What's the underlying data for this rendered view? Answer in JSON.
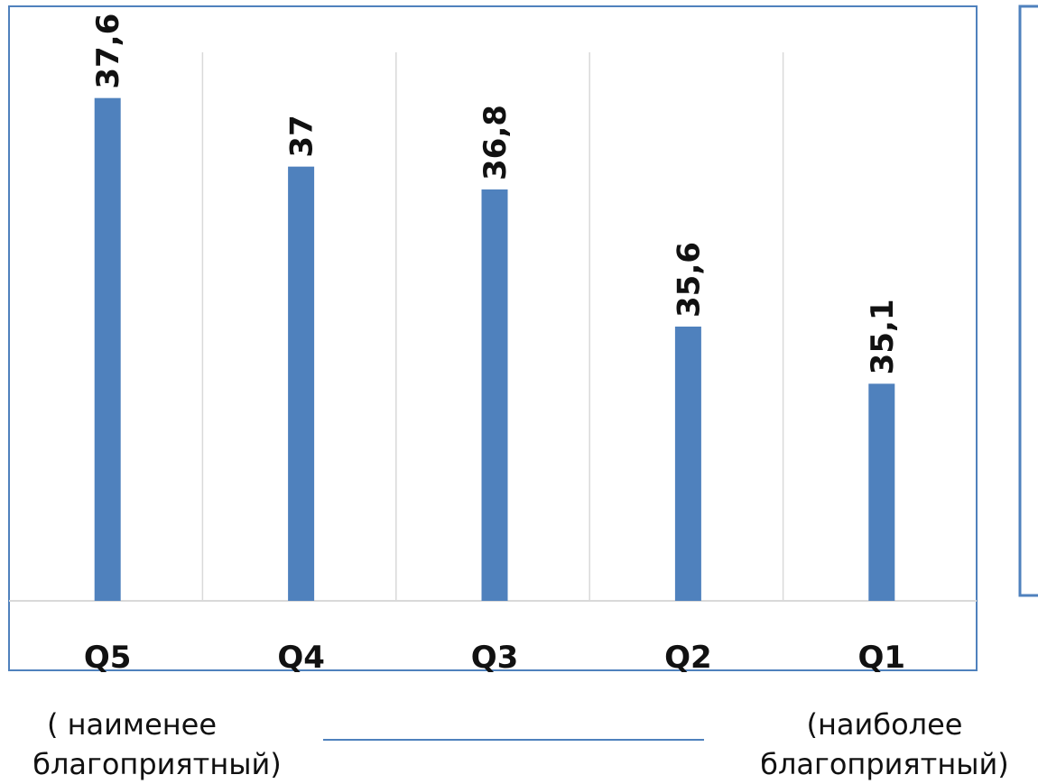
{
  "chart_data": {
    "type": "bar",
    "categories": [
      "Q5",
      "Q4",
      "Q3",
      "Q2",
      "Q1"
    ],
    "values": [
      37.6,
      37,
      36.8,
      35.6,
      35.1
    ],
    "value_labels": [
      "37,6",
      "37",
      "36,8",
      "35,6",
      "35,1"
    ],
    "title": "",
    "xlabel": "",
    "ylabel": "",
    "ylim": [
      33.2,
      38.0
    ],
    "grid": "vertical",
    "legend": "none",
    "bar_color": "#4F81BD",
    "frame_color": "#4F81BD"
  },
  "annotations": {
    "left_line1": "( наименее",
    "left_line2": "благоприятный)",
    "right_line1": "(наиболее",
    "right_line2": "благоприятный)"
  }
}
